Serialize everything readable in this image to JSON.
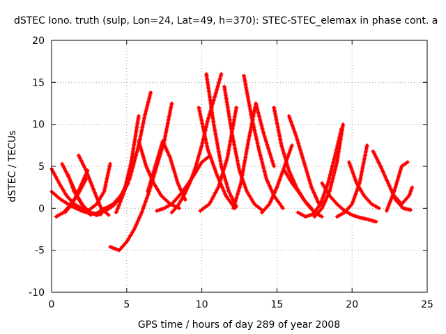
{
  "chart_data": {
    "type": "scatter",
    "title": "dSTEC Iono. truth (sulp, Lon=24, Lat=49, h=370): STEC-STEC_elemax in phase cont. a",
    "xlabel": "GPS time / hours of day 289 of year 2008",
    "ylabel": "dSTEC  / TECUs",
    "xlim": [
      0,
      25
    ],
    "ylim": [
      -10,
      20
    ],
    "xticks": [
      0,
      5,
      10,
      15,
      20,
      25
    ],
    "yticks": [
      -10,
      -5,
      0,
      5,
      10,
      15,
      20
    ],
    "grid": true,
    "marker": "+",
    "color": "#ff0000",
    "series": [
      {
        "x": [
          0.0,
          0.5,
          1.0,
          1.5,
          2.0,
          2.6,
          3.0
        ],
        "y": [
          4.7,
          3.0,
          1.5,
          0.5,
          0.0,
          -0.6,
          -0.8
        ]
      },
      {
        "x": [
          0.0,
          0.5,
          1.0,
          1.5,
          2.0,
          2.5,
          3.0,
          3.5
        ],
        "y": [
          2.0,
          1.2,
          0.6,
          0.1,
          -0.3,
          -0.6,
          -0.6,
          0.0
        ]
      },
      {
        "x": [
          0.3,
          0.8,
          1.3,
          1.8,
          2.3
        ],
        "y": [
          -1.0,
          -0.5,
          0.5,
          1.8,
          3.5
        ]
      },
      {
        "x": [
          0.7,
          1.2,
          1.7,
          2.2,
          2.6
        ],
        "y": [
          5.3,
          3.5,
          1.5,
          0.0,
          -0.8
        ]
      },
      {
        "x": [
          1.1,
          1.5,
          2.0,
          2.5,
          3.0,
          3.3
        ],
        "y": [
          4.0,
          2.0,
          0.5,
          -0.4,
          -0.8,
          -0.7
        ]
      },
      {
        "x": [
          0.9,
          1.4,
          1.9,
          2.4
        ],
        "y": [
          -0.5,
          0.6,
          2.5,
          4.5
        ]
      },
      {
        "x": [
          1.8,
          2.3,
          2.8,
          3.3,
          3.8
        ],
        "y": [
          6.3,
          4.5,
          2.2,
          0.0,
          -0.8
        ]
      },
      {
        "x": [
          2.5,
          3.0,
          3.5,
          3.9
        ],
        "y": [
          -0.2,
          0.5,
          2.0,
          5.3
        ]
      },
      {
        "x": [
          3.1,
          3.6,
          4.1,
          4.6,
          5.1
        ],
        "y": [
          -0.6,
          -0.3,
          0.3,
          1.3,
          3.0
        ]
      },
      {
        "x": [
          3.6,
          4.1,
          4.6,
          5.2,
          5.8,
          6.2,
          6.6
        ],
        "y": [
          0.0,
          0.5,
          1.5,
          3.5,
          7.5,
          11.0,
          13.8
        ]
      },
      {
        "x": [
          3.9,
          4.5,
          5.0,
          5.5,
          6.0,
          6.5,
          7.0,
          7.5,
          8.0
        ],
        "y": [
          -4.6,
          -5.0,
          -4.0,
          -2.5,
          -0.5,
          2.0,
          5.0,
          8.0,
          12.5
        ]
      },
      {
        "x": [
          4.3,
          4.8,
          5.3,
          5.8
        ],
        "y": [
          -0.5,
          1.8,
          5.5,
          11.0
        ]
      },
      {
        "x": [
          5.8,
          6.3,
          6.8,
          7.3,
          7.9,
          8.5
        ],
        "y": [
          8.0,
          5.0,
          3.0,
          1.5,
          0.5,
          0.0
        ]
      },
      {
        "x": [
          6.4,
          6.9,
          7.4,
          7.9,
          8.4,
          8.9
        ],
        "y": [
          2.0,
          5.0,
          8.0,
          6.0,
          3.0,
          1.0
        ]
      },
      {
        "x": [
          7.0,
          7.5,
          8.0,
          8.5,
          9.0,
          9.5,
          10.0,
          10.5
        ],
        "y": [
          -0.3,
          0.0,
          0.5,
          1.5,
          2.7,
          4.0,
          5.5,
          6.2
        ]
      },
      {
        "x": [
          8.0,
          8.4,
          8.8,
          9.2,
          9.6,
          10.0,
          10.4,
          10.9,
          11.3
        ],
        "y": [
          -0.5,
          0.3,
          1.5,
          3.0,
          5.0,
          7.5,
          10.5,
          13.5,
          16.0
        ]
      },
      {
        "x": [
          9.8,
          10.4,
          11.0,
          11.6,
          12.2
        ],
        "y": [
          12.0,
          7.0,
          4.0,
          1.5,
          0.0
        ]
      },
      {
        "x": [
          10.3,
          10.8,
          11.3,
          11.8,
          12.3
        ],
        "y": [
          16.0,
          10.0,
          5.0,
          2.0,
          0.2
        ]
      },
      {
        "x": [
          9.9,
          10.5,
          11.1,
          11.7,
          12.3
        ],
        "y": [
          -0.3,
          0.5,
          2.5,
          6.0,
          12.0
        ]
      },
      {
        "x": [
          11.5,
          12.0,
          12.5,
          13.0,
          13.5,
          14.0
        ],
        "y": [
          14.5,
          9.0,
          4.5,
          2.0,
          0.5,
          -0.2
        ]
      },
      {
        "x": [
          12.1,
          12.6,
          13.1,
          13.6,
          14.1,
          14.8
        ],
        "y": [
          0.0,
          3.0,
          8.0,
          12.5,
          9.0,
          5.0
        ]
      },
      {
        "x": [
          12.8,
          13.3,
          13.8,
          14.3,
          14.8,
          15.4
        ],
        "y": [
          15.8,
          11.0,
          7.0,
          3.5,
          1.5,
          0.0
        ]
      },
      {
        "x": [
          14.0,
          14.5,
          15.0,
          15.5,
          16.0
        ],
        "y": [
          -0.5,
          0.5,
          2.5,
          5.0,
          7.5
        ]
      },
      {
        "x": [
          14.8,
          15.3,
          15.8,
          16.3,
          16.8,
          17.3
        ],
        "y": [
          12.0,
          7.5,
          4.5,
          2.5,
          1.0,
          0.0
        ]
      },
      {
        "x": [
          15.8,
          16.3,
          16.8,
          17.3,
          17.8
        ],
        "y": [
          11.0,
          8.5,
          5.5,
          2.5,
          0.5
        ]
      },
      {
        "x": [
          15.5,
          16.0,
          16.5,
          17.0,
          17.5,
          18.0
        ],
        "y": [
          4.5,
          3.0,
          1.8,
          0.5,
          -0.5,
          -1.0
        ]
      },
      {
        "x": [
          16.4,
          16.9,
          17.4,
          17.9,
          18.4,
          18.9,
          19.3
        ],
        "y": [
          -0.5,
          -1.0,
          -0.7,
          0.5,
          3.0,
          6.5,
          9.5
        ]
      },
      {
        "x": [
          17.5,
          18.0,
          18.5,
          19.0,
          19.4
        ],
        "y": [
          -1.0,
          0.0,
          2.0,
          5.5,
          10.0
        ]
      },
      {
        "x": [
          18.0,
          18.5,
          19.0,
          19.5,
          20.0,
          20.5,
          21.0,
          21.6
        ],
        "y": [
          3.0,
          1.5,
          0.5,
          -0.3,
          -0.8,
          -1.1,
          -1.3,
          -1.6
        ]
      },
      {
        "x": [
          19.0,
          19.5,
          20.0,
          20.5,
          21.0
        ],
        "y": [
          -1.0,
          -0.5,
          0.5,
          3.0,
          7.5
        ]
      },
      {
        "x": [
          19.8,
          20.3,
          20.8,
          21.3,
          21.8
        ],
        "y": [
          5.5,
          3.0,
          1.5,
          0.5,
          0.0
        ]
      },
      {
        "x": [
          21.4,
          21.9,
          22.4,
          22.9,
          23.4,
          23.9
        ],
        "y": [
          6.8,
          5.0,
          3.0,
          1.0,
          0.0,
          -0.2
        ]
      },
      {
        "x": [
          22.3,
          22.8,
          23.3,
          23.7
        ],
        "y": [
          -0.3,
          2.0,
          5.0,
          5.5
        ]
      },
      {
        "x": [
          22.8,
          23.3,
          23.8,
          24.0
        ],
        "y": [
          1.5,
          0.5,
          1.5,
          2.5
        ]
      }
    ]
  }
}
